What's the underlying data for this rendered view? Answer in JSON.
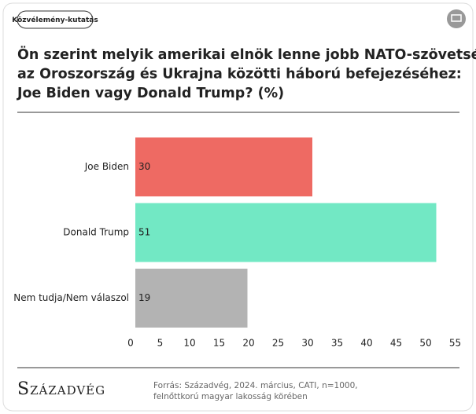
{
  "chart_data": {
    "type": "bar",
    "orientation": "horizontal",
    "tag": "Közvélemény-kutatás",
    "title": [
      "Ön szerint melyik amerikai elnök lenne jobb NATO-szövetséges",
      "az Oroszország és Ukrajna közötti háború befejezéséhez:",
      "Joe Biden vagy Donald Trump? (%)"
    ],
    "categories": [
      "Joe Biden",
      "Donald Trump",
      "Nem tudja/Nem válaszol"
    ],
    "values": [
      30,
      51,
      19
    ],
    "colors": [
      "#ee6a63",
      "#72e8c4",
      "#b3b3b3"
    ],
    "xlim": [
      0,
      55
    ],
    "xticks": [
      0,
      5,
      10,
      15,
      20,
      25,
      30,
      35,
      40,
      45,
      50,
      55
    ],
    "logo": "Századvég",
    "source": [
      "Forrás: Századvég, 2024. március, CATI, n=1000,",
      "felnőttkorú magyar lakosság körében"
    ]
  }
}
